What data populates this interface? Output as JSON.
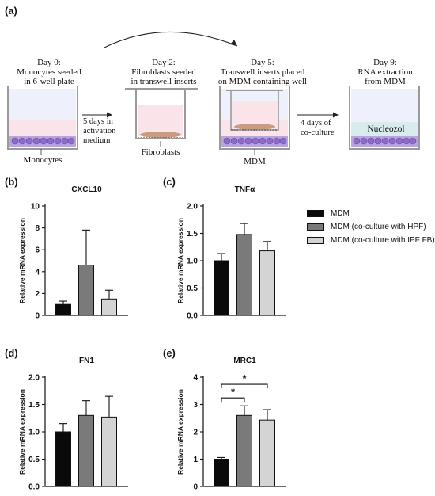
{
  "panel_a": {
    "label": "(a)",
    "steps": [
      {
        "title": "Day 0:\nMonocytes seeded\nin 6-well plate",
        "caption": "Monocytes"
      },
      {
        "title": "Day 2:\nFibroblasts seeded\nin transwell inserts",
        "caption": "Fibroblasts"
      },
      {
        "title": "Day 5:\nTranswell inserts placed\non MDM containing well",
        "caption": "MDM"
      },
      {
        "title": "Day 9:\nRNA extraction\nfrom MDM",
        "inner_label": "Nucleozol"
      }
    ],
    "arrow1_text": "5 days in\nactivation\nmedium",
    "arrow2_text": "4 days of\nco-culture"
  },
  "legend": {
    "items": [
      {
        "label": "MDM",
        "color": "#0a0a0a"
      },
      {
        "label": "MDM (co-culture with HPF)",
        "color": "#7a7a7a"
      },
      {
        "label": "MDM (co-culture with IPF FB)",
        "color": "#d4d4d4"
      }
    ]
  },
  "chart_data": [
    {
      "type": "bar",
      "panel": "(b)",
      "title": "CXCL10",
      "ylabel": "Relative mRNA expression",
      "ylim": [
        0,
        10
      ],
      "yticks": [
        "0",
        "2",
        "4",
        "6",
        "8",
        "10"
      ],
      "values": [
        1.0,
        4.6,
        1.5
      ],
      "errors": [
        0.3,
        3.2,
        0.8
      ],
      "colors": [
        "#0a0a0a",
        "#7a7a7a",
        "#d4d4d4"
      ]
    },
    {
      "type": "bar",
      "panel": "(c)",
      "title": "TNFα",
      "ylabel": "Relative mRNA expression",
      "ylim": [
        0,
        2.0
      ],
      "yticks": [
        "0.0",
        "0.5",
        "1.0",
        "1.5",
        "2.0"
      ],
      "values": [
        1.0,
        1.48,
        1.18
      ],
      "errors": [
        0.13,
        0.2,
        0.17
      ],
      "colors": [
        "#0a0a0a",
        "#7a7a7a",
        "#d4d4d4"
      ]
    },
    {
      "type": "bar",
      "panel": "(d)",
      "title": "FN1",
      "ylabel": "Relative mRNA expression",
      "ylim": [
        0,
        2.0
      ],
      "yticks": [
        "0.0",
        "0.5",
        "1.0",
        "1.5",
        "2.0"
      ],
      "values": [
        1.0,
        1.3,
        1.27
      ],
      "errors": [
        0.15,
        0.27,
        0.38
      ],
      "colors": [
        "#0a0a0a",
        "#7a7a7a",
        "#d4d4d4"
      ]
    },
    {
      "type": "bar",
      "panel": "(e)",
      "title": "MRC1",
      "ylabel": "Relative mRNA expression",
      "ylim": [
        0,
        4
      ],
      "yticks": [
        "0",
        "1",
        "2",
        "3",
        "4"
      ],
      "values": [
        1.0,
        2.6,
        2.43
      ],
      "errors": [
        0.06,
        0.35,
        0.38
      ],
      "colors": [
        "#0a0a0a",
        "#7a7a7a",
        "#d4d4d4"
      ],
      "significance": [
        {
          "from": 0,
          "to": 1,
          "label": "*"
        },
        {
          "from": 0,
          "to": 2,
          "label": "*"
        }
      ]
    }
  ]
}
